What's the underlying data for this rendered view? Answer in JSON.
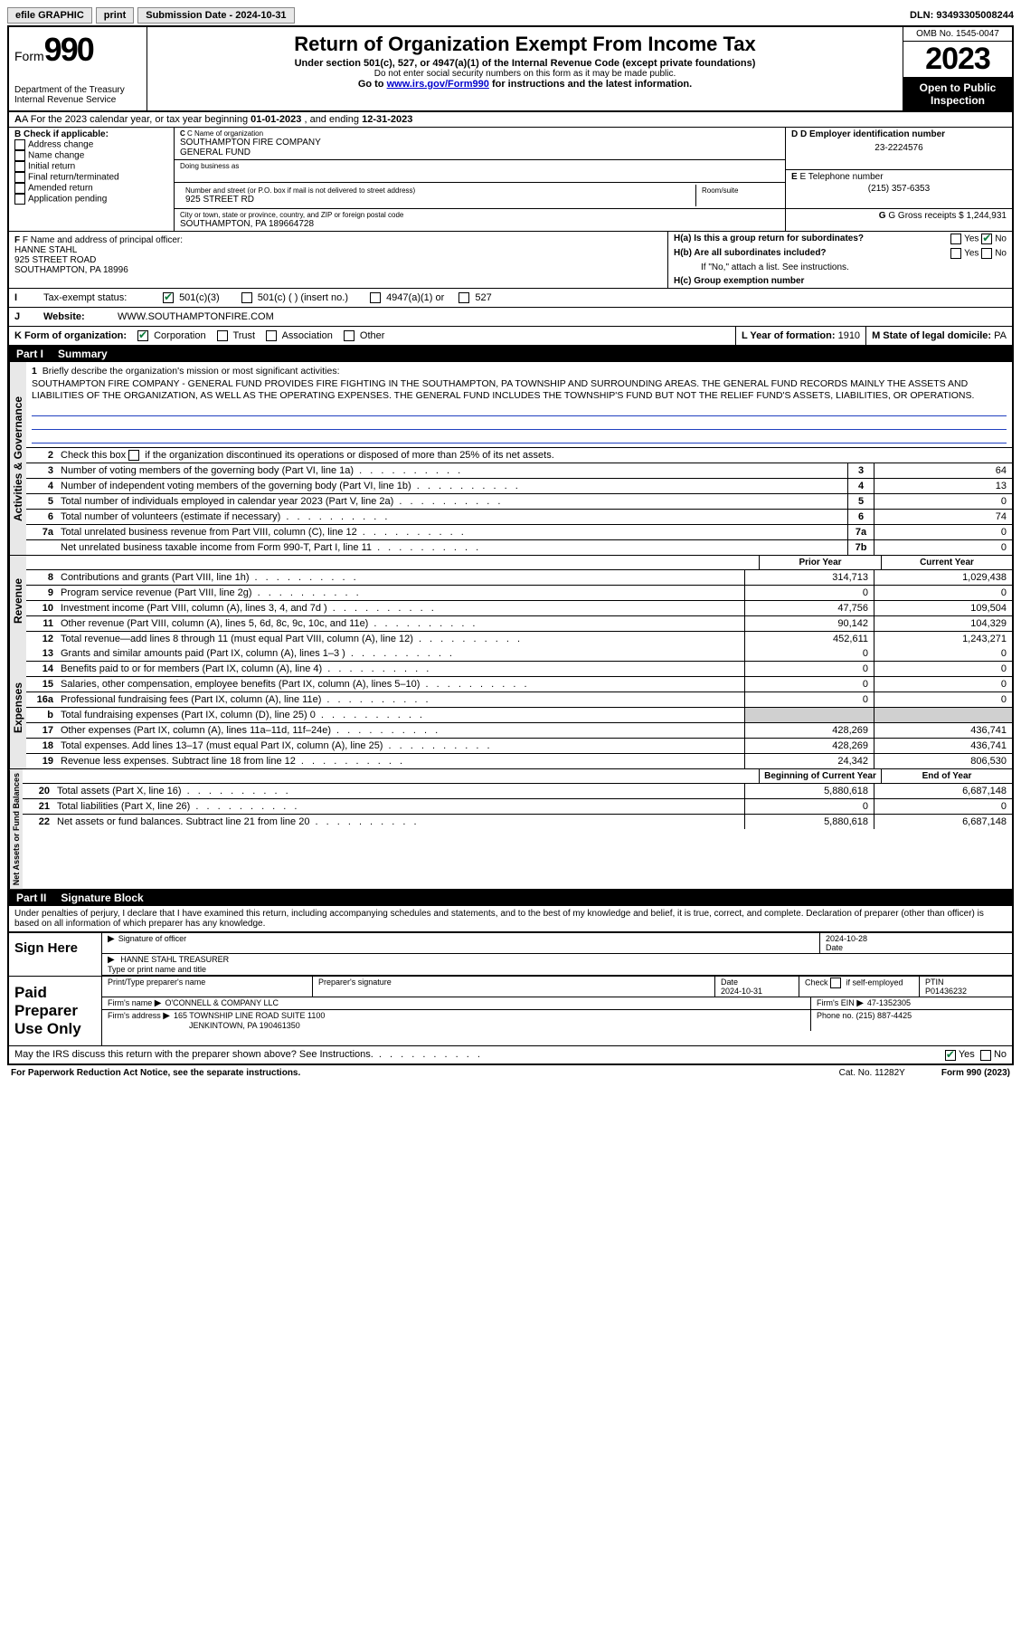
{
  "topbar": {
    "efile": "efile GRAPHIC",
    "print": "print",
    "sub_label": "Submission Date - ",
    "sub_date": "2024-10-31",
    "dln_label": "DLN: ",
    "dln": "93493305008244"
  },
  "header": {
    "form_word": "Form",
    "form_num": "990",
    "dept": "Department of the Treasury",
    "irs": "Internal Revenue Service",
    "title": "Return of Organization Exempt From Income Tax",
    "sub1": "Under section 501(c), 527, or 4947(a)(1) of the Internal Revenue Code (except private foundations)",
    "sub2": "Do not enter social security numbers on this form as it may be made public.",
    "sub3_pre": "Go to ",
    "sub3_link": "www.irs.gov/Form990",
    "sub3_post": " for instructions and the latest information.",
    "omb": "OMB No. 1545-0047",
    "year": "2023",
    "open": "Open to Public Inspection"
  },
  "rowA": {
    "pre": "A For the 2023 calendar year, or tax year beginning ",
    "begin": "01-01-2023",
    "mid": " , and ending ",
    "end": "12-31-2023"
  },
  "colB": {
    "hdr": "B Check if applicable:",
    "items": [
      "Address change",
      "Name change",
      "Initial return",
      "Final return/terminated",
      "Amended return",
      "Application pending"
    ]
  },
  "colC": {
    "name_lab": "C Name of organization",
    "name1": "SOUTHAMPTON FIRE COMPANY",
    "name2": "GENERAL FUND",
    "dba_lab": "Doing business as",
    "addr_lab": "Number and street (or P.O. box if mail is not delivered to street address)",
    "room_lab": "Room/suite",
    "addr": "925 STREET RD",
    "city_lab": "City or town, state or province, country, and ZIP or foreign postal code",
    "city": "SOUTHAMPTON, PA  189664728"
  },
  "colD": {
    "ein_lab": "D Employer identification number",
    "ein": "23-2224576",
    "tel_lab": "E Telephone number",
    "tel": "(215) 357-6353",
    "gross_lab": "G Gross receipts $ ",
    "gross": "1,244,931"
  },
  "fgh": {
    "f_lab": "F Name and address of principal officer:",
    "f_name": "HANNE STAHL",
    "f_addr1": "925 STREET ROAD",
    "f_addr2": "SOUTHAMPTON, PA  18996",
    "ha": "H(a)  Is this a group return for subordinates?",
    "hb": "H(b)  Are all subordinates included?",
    "hb_note": "If \"No,\" attach a list. See instructions.",
    "hc": "H(c)  Group exemption number ",
    "yes": "Yes",
    "no": "No"
  },
  "status": {
    "i": "I",
    "lab": "Tax-exempt status:",
    "c3": "501(c)(3)",
    "c": "501(c) (    ) (insert no.)",
    "a1": "4947(a)(1) or",
    "five27": "527"
  },
  "web": {
    "j": "J",
    "lab": "Website:",
    "val": "WWW.SOUTHAMPTONFIRE.COM"
  },
  "korg": {
    "k": "K Form of organization:",
    "corp": "Corporation",
    "trust": "Trust",
    "assoc": "Association",
    "other": "Other",
    "l": "L Year of formation: ",
    "lval": "1910",
    "m": "M State of legal domicile: ",
    "mval": "PA"
  },
  "part1": {
    "label": "Part I",
    "title": "Summary"
  },
  "mission": {
    "num": "1",
    "lab": "Briefly describe the organization's mission or most significant activities:",
    "txt": "SOUTHAMPTON FIRE COMPANY - GENERAL FUND PROVIDES FIRE FIGHTING IN THE SOUTHAMPTON, PA TOWNSHIP AND SURROUNDING AREAS. THE GENERAL FUND RECORDS MAINLY THE ASSETS AND LIABILITIES OF THE ORGANIZATION, AS WELL AS THE OPERATING EXPENSES. THE GENERAL FUND INCLUDES THE TOWNSHIP'S FUND BUT NOT THE RELIEF FUND'S ASSETS, LIABILITIES, OR OPERATIONS."
  },
  "gov": {
    "l2": "Check this box      if the organization discontinued its operations or disposed of more than 25% of its net assets.",
    "l3": {
      "t": "Number of voting members of the governing body (Part VI, line 1a)",
      "b": "3",
      "v": "64"
    },
    "l4": {
      "t": "Number of independent voting members of the governing body (Part VI, line 1b)",
      "b": "4",
      "v": "13"
    },
    "l5": {
      "t": "Total number of individuals employed in calendar year 2023 (Part V, line 2a)",
      "b": "5",
      "v": "0"
    },
    "l6": {
      "t": "Total number of volunteers (estimate if necessary)",
      "b": "6",
      "v": "74"
    },
    "l7a": {
      "t": "Total unrelated business revenue from Part VIII, column (C), line 12",
      "b": "7a",
      "v": "0"
    },
    "l7b": {
      "t": "Net unrelated business taxable income from Form 990-T, Part I, line 11",
      "b": "7b",
      "v": "0"
    }
  },
  "yrhdr": {
    "prior": "Prior Year",
    "curr": "Current Year"
  },
  "rev": [
    {
      "n": "8",
      "t": "Contributions and grants (Part VIII, line 1h)",
      "p": "314,713",
      "c": "1,029,438"
    },
    {
      "n": "9",
      "t": "Program service revenue (Part VIII, line 2g)",
      "p": "0",
      "c": "0"
    },
    {
      "n": "10",
      "t": "Investment income (Part VIII, column (A), lines 3, 4, and 7d )",
      "p": "47,756",
      "c": "109,504"
    },
    {
      "n": "11",
      "t": "Other revenue (Part VIII, column (A), lines 5, 6d, 8c, 9c, 10c, and 11e)",
      "p": "90,142",
      "c": "104,329"
    },
    {
      "n": "12",
      "t": "Total revenue—add lines 8 through 11 (must equal Part VIII, column (A), line 12)",
      "p": "452,611",
      "c": "1,243,271"
    }
  ],
  "exp": [
    {
      "n": "13",
      "t": "Grants and similar amounts paid (Part IX, column (A), lines 1–3 )",
      "p": "0",
      "c": "0"
    },
    {
      "n": "14",
      "t": "Benefits paid to or for members (Part IX, column (A), line 4)",
      "p": "0",
      "c": "0"
    },
    {
      "n": "15",
      "t": "Salaries, other compensation, employee benefits (Part IX, column (A), lines 5–10)",
      "p": "0",
      "c": "0"
    },
    {
      "n": "16a",
      "t": "Professional fundraising fees (Part IX, column (A), line 11e)",
      "p": "0",
      "c": "0"
    },
    {
      "n": "b",
      "t": "Total fundraising expenses (Part IX, column (D), line 25) 0",
      "p": "",
      "c": "",
      "grey": true
    },
    {
      "n": "17",
      "t": "Other expenses (Part IX, column (A), lines 11a–11d, 11f–24e)",
      "p": "428,269",
      "c": "436,741"
    },
    {
      "n": "18",
      "t": "Total expenses. Add lines 13–17 (must equal Part IX, column (A), line 25)",
      "p": "428,269",
      "c": "436,741"
    },
    {
      "n": "19",
      "t": "Revenue less expenses. Subtract line 18 from line 12",
      "p": "24,342",
      "c": "806,530"
    }
  ],
  "nethdr": {
    "b": "Beginning of Current Year",
    "e": "End of Year"
  },
  "net": [
    {
      "n": "20",
      "t": "Total assets (Part X, line 16)",
      "p": "5,880,618",
      "c": "6,687,148"
    },
    {
      "n": "21",
      "t": "Total liabilities (Part X, line 26)",
      "p": "0",
      "c": "0"
    },
    {
      "n": "22",
      "t": "Net assets or fund balances. Subtract line 21 from line 20",
      "p": "5,880,618",
      "c": "6,687,148"
    }
  ],
  "vtabs": {
    "gov": "Activities & Governance",
    "rev": "Revenue",
    "exp": "Expenses",
    "net": "Net Assets or Fund Balances"
  },
  "part2": {
    "label": "Part II",
    "title": "Signature Block"
  },
  "perjury": "Under penalties of perjury, I declare that I have examined this return, including accompanying schedules and statements, and to the best of my knowledge and belief, it is true, correct, and complete. Declaration of preparer (other than officer) is based on all information of which preparer has any knowledge.",
  "sign": {
    "here": "Sign Here",
    "sig_lab": "Signature of officer",
    "date_lab": "Date",
    "date": "2024-10-28",
    "name": "HANNE STAHL TREASURER",
    "name_lab": "Type or print name and title"
  },
  "paid": {
    "left": "Paid Preparer Use Only",
    "pt_name_lab": "Print/Type preparer's name",
    "pt_sig_lab": "Preparer's signature",
    "pt_date_lab": "Date",
    "pt_date": "2024-10-31",
    "check_lab": "Check         if self-employed",
    "ptin_lab": "PTIN",
    "ptin": "P01436232",
    "firm_name_lab": "Firm's name   ",
    "firm_name": "O'CONNELL & COMPANY LLC",
    "firm_ein_lab": "Firm's EIN  ",
    "firm_ein": "47-1352305",
    "firm_addr_lab": "Firm's address ",
    "firm_addr1": "165 TOWNSHIP LINE ROAD SUITE 1100",
    "firm_addr2": "JENKINTOWN, PA  190461350",
    "phone_lab": "Phone no. ",
    "phone": "(215) 887-4425"
  },
  "discuss": {
    "q": "May the IRS discuss this return with the preparer shown above? See Instructions.",
    "yes": "Yes",
    "no": "No"
  },
  "footer": {
    "pra": "For Paperwork Reduction Act Notice, see the separate instructions.",
    "cat": "Cat. No. 11282Y",
    "form": "Form 990 (2023)"
  }
}
